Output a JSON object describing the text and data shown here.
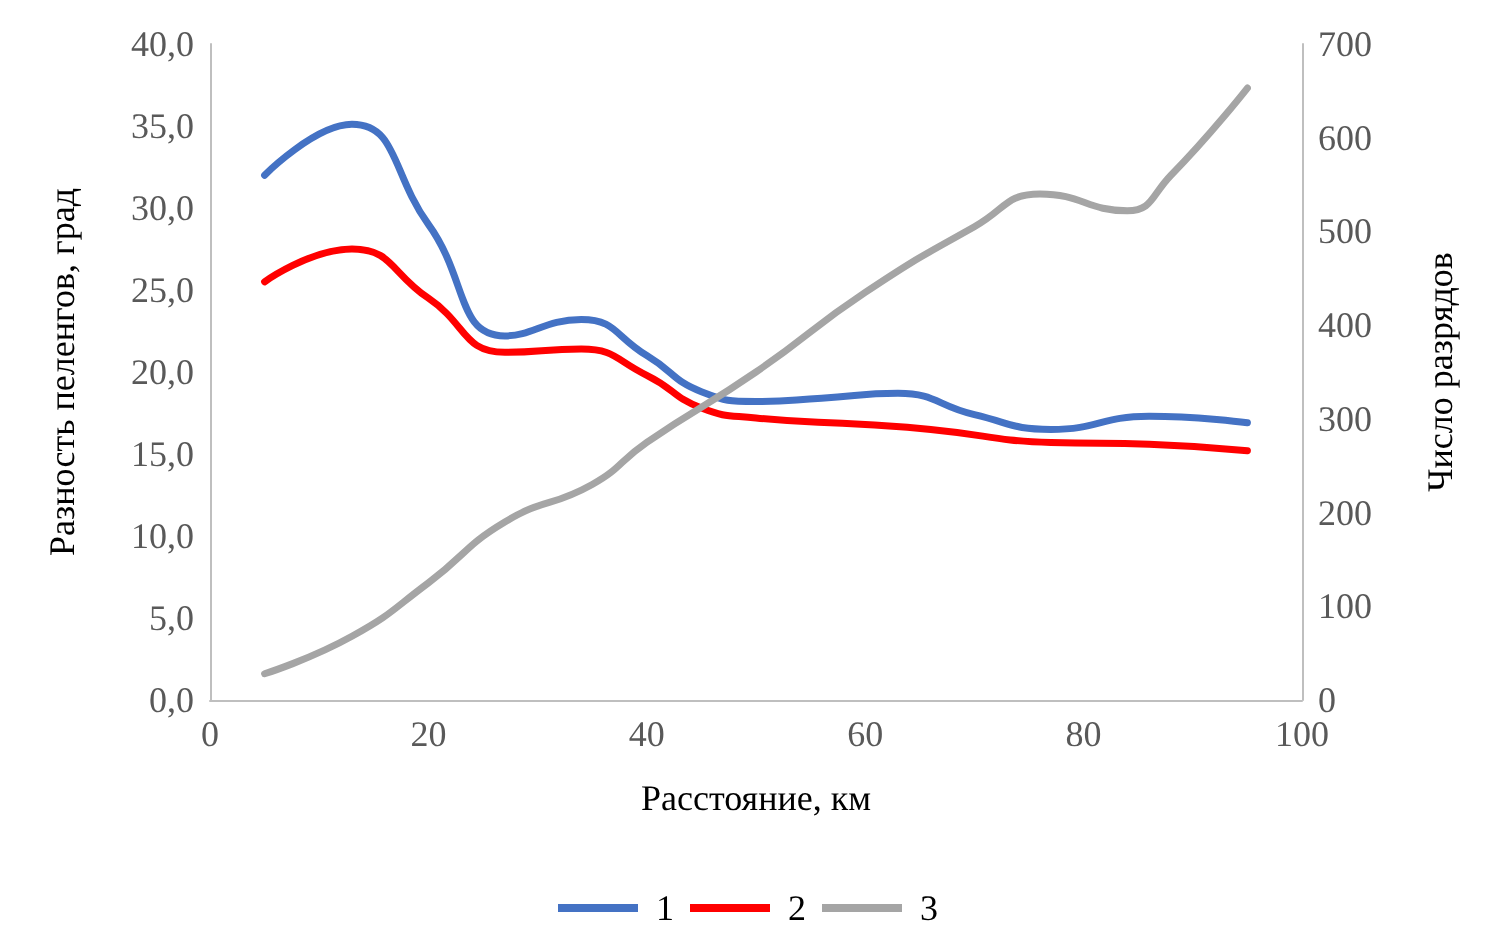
{
  "chart_data": {
    "type": "line",
    "xlabel": "Расстояние, км",
    "ylabel": "Разность пеленгов, град",
    "y2label": "Число разрядов",
    "xlim": [
      0,
      100
    ],
    "xticks": [
      0,
      20,
      40,
      60,
      80,
      100
    ],
    "ylim": [
      0,
      40
    ],
    "yticks": [
      {
        "value": 0,
        "label": "0,0"
      },
      {
        "value": 5,
        "label": "5,0"
      },
      {
        "value": 10,
        "label": "10,0"
      },
      {
        "value": 15,
        "label": "15,0"
      },
      {
        "value": 20,
        "label": "20,0"
      },
      {
        "value": 25,
        "label": "25,0"
      },
      {
        "value": 30,
        "label": "30,0"
      },
      {
        "value": 35,
        "label": "35,0"
      },
      {
        "value": 40,
        "label": "40,0"
      }
    ],
    "y2lim": [
      0,
      700
    ],
    "y2ticks": [
      0,
      100,
      200,
      300,
      400,
      500,
      600,
      700
    ],
    "grid": false,
    "legend": "bottom",
    "marker": "none",
    "line_style": "solid",
    "series": [
      {
        "name": "1",
        "color": "#4472c4",
        "x": [
          5,
          13,
          20,
          27,
          34,
          40,
          45,
          50,
          56,
          63,
          70,
          77,
          86,
          95
        ],
        "values": [
          32.0,
          35.1,
          29.0,
          22.2,
          23.2,
          21.0,
          18.8,
          18.2,
          18.4,
          18.7,
          17.4,
          16.5,
          17.3,
          16.9
        ]
      },
      {
        "name": "2",
        "color": "#ff0000",
        "x": [
          5,
          13,
          20,
          27,
          34,
          40,
          45,
          50,
          60,
          66,
          77,
          86,
          95
        ],
        "values": [
          25.5,
          27.5,
          24.5,
          21.2,
          21.4,
          19.8,
          17.8,
          17.2,
          16.8,
          16.5,
          15.7,
          15.6,
          15.2
        ]
      },
      {
        "name": "3",
        "color": "#a5a5a5",
        "axis": "y2",
        "x": [
          5,
          13,
          20,
          27,
          35,
          40,
          50,
          60,
          70,
          76,
          84,
          88,
          95
        ],
        "values": [
          28,
          68,
          125,
          190,
          230,
          275,
          350,
          435,
          505,
          540,
          522,
          560,
          653
        ]
      }
    ]
  }
}
